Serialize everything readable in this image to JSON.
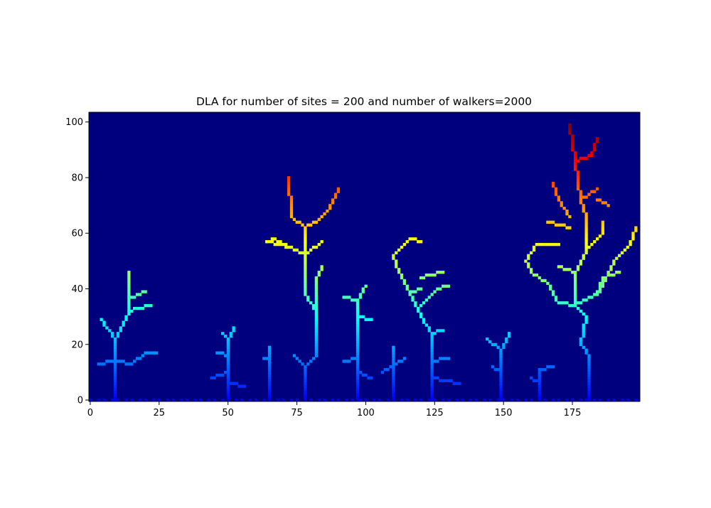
{
  "chart_data": {
    "type": "heatmap",
    "title": "DLA for number of sites = 200 and number of walkers=2000",
    "xlabel": "",
    "ylabel": "",
    "xlim": [
      0,
      200
    ],
    "ylim": [
      0,
      104
    ],
    "x_ticks": [
      0,
      25,
      50,
      75,
      100,
      125,
      150,
      175
    ],
    "y_ticks": [
      0,
      20,
      40,
      60,
      80,
      100
    ],
    "colormap": "jet",
    "background_color": "#00007f",
    "grid": false,
    "legend": "none",
    "clusters": [
      {
        "name": "left",
        "trunk_x": 9,
        "top": 46,
        "segments": [
          [
            9,
            0,
            9,
            22
          ],
          [
            9,
            22,
            4,
            29
          ],
          [
            9,
            22,
            14,
            32
          ],
          [
            14,
            32,
            14,
            46
          ],
          [
            14,
            36,
            20,
            39
          ],
          [
            14,
            32,
            22,
            34
          ],
          [
            9,
            14,
            3,
            13
          ],
          [
            9,
            14,
            15,
            13
          ],
          [
            15,
            13,
            20,
            17
          ],
          [
            20,
            17,
            24,
            17
          ]
        ]
      },
      {
        "name": "small-50",
        "trunk_x": 50,
        "top": 26,
        "segments": [
          [
            50,
            0,
            50,
            22
          ],
          [
            50,
            22,
            48,
            24
          ],
          [
            50,
            22,
            52,
            26
          ],
          [
            50,
            16,
            46,
            17
          ],
          [
            50,
            10,
            44,
            8
          ],
          [
            50,
            6,
            56,
            5
          ]
        ]
      },
      {
        "name": "small-65",
        "trunk_x": 65,
        "top": 19,
        "segments": [
          [
            65,
            0,
            65,
            19
          ],
          [
            65,
            14,
            63,
            15
          ]
        ]
      },
      {
        "name": "mid-left",
        "trunk_x": 78,
        "top": 80,
        "segments": [
          [
            78,
            0,
            78,
            12
          ],
          [
            78,
            12,
            74,
            16
          ],
          [
            78,
            12,
            82,
            16
          ],
          [
            82,
            16,
            82,
            32
          ],
          [
            82,
            32,
            78,
            38
          ],
          [
            78,
            38,
            78,
            52
          ],
          [
            78,
            52,
            73,
            55
          ],
          [
            73,
            55,
            66,
            58
          ],
          [
            78,
            52,
            84,
            57
          ],
          [
            78,
            52,
            78,
            62
          ],
          [
            78,
            62,
            73,
            66
          ],
          [
            73,
            66,
            72,
            80
          ],
          [
            78,
            62,
            82,
            64
          ],
          [
            82,
            64,
            86,
            68
          ],
          [
            86,
            68,
            90,
            76
          ],
          [
            73,
            55,
            64,
            57
          ],
          [
            82,
            32,
            82,
            44
          ],
          [
            82,
            44,
            84,
            48
          ]
        ]
      },
      {
        "name": "mid-small",
        "trunk_x": 97,
        "top": 42,
        "segments": [
          [
            97,
            0,
            97,
            36
          ],
          [
            97,
            36,
            92,
            37
          ],
          [
            97,
            30,
            102,
            29
          ],
          [
            97,
            36,
            100,
            41
          ],
          [
            97,
            15,
            92,
            14
          ],
          [
            97,
            10,
            102,
            8
          ]
        ]
      },
      {
        "name": "mid-small-2",
        "trunk_x": 110,
        "top": 19,
        "segments": [
          [
            110,
            0,
            110,
            19
          ],
          [
            110,
            12,
            106,
            10
          ],
          [
            110,
            12,
            114,
            15
          ]
        ]
      },
      {
        "name": "center-right",
        "trunk_x": 124,
        "top": 59,
        "segments": [
          [
            124,
            0,
            124,
            24
          ],
          [
            124,
            24,
            120,
            30
          ],
          [
            120,
            30,
            116,
            38
          ],
          [
            116,
            38,
            112,
            46
          ],
          [
            112,
            46,
            110,
            52
          ],
          [
            110,
            52,
            116,
            58
          ],
          [
            116,
            58,
            120,
            57
          ],
          [
            116,
            38,
            120,
            40
          ],
          [
            124,
            24,
            128,
            25
          ],
          [
            120,
            34,
            126,
            40
          ],
          [
            126,
            40,
            130,
            41
          ],
          [
            120,
            44,
            128,
            46
          ],
          [
            124,
            14,
            130,
            15
          ],
          [
            124,
            8,
            134,
            6
          ]
        ]
      },
      {
        "name": "right-small",
        "trunk_x": 149,
        "top": 26,
        "segments": [
          [
            149,
            0,
            149,
            18
          ],
          [
            149,
            18,
            144,
            22
          ],
          [
            149,
            18,
            152,
            24
          ],
          [
            149,
            10,
            146,
            12
          ]
        ]
      },
      {
        "name": "right-small-2",
        "trunk_x": 163,
        "top": 13,
        "segments": [
          [
            163,
            0,
            163,
            11
          ],
          [
            163,
            11,
            168,
            12
          ],
          [
            163,
            6,
            160,
            8
          ]
        ]
      },
      {
        "name": "right",
        "trunk_x": 181,
        "top": 99,
        "segments": [
          [
            181,
            0,
            181,
            16
          ],
          [
            181,
            16,
            178,
            20
          ],
          [
            178,
            20,
            180,
            30
          ],
          [
            180,
            30,
            176,
            34
          ],
          [
            176,
            34,
            170,
            35
          ],
          [
            170,
            35,
            166,
            42
          ],
          [
            166,
            42,
            160,
            46
          ],
          [
            160,
            46,
            158,
            50
          ],
          [
            158,
            50,
            162,
            56
          ],
          [
            162,
            56,
            170,
            56
          ],
          [
            176,
            34,
            184,
            38
          ],
          [
            184,
            38,
            186,
            44
          ],
          [
            186,
            44,
            192,
            46
          ],
          [
            184,
            38,
            190,
            50
          ],
          [
            190,
            50,
            196,
            56
          ],
          [
            196,
            56,
            198,
            62
          ],
          [
            176,
            34,
            176,
            46
          ],
          [
            176,
            46,
            180,
            54
          ],
          [
            180,
            54,
            180,
            66
          ],
          [
            180,
            66,
            178,
            72
          ],
          [
            178,
            72,
            176,
            86
          ],
          [
            176,
            86,
            174,
            99
          ],
          [
            178,
            72,
            184,
            76
          ],
          [
            184,
            72,
            188,
            70
          ],
          [
            176,
            86,
            182,
            88
          ],
          [
            182,
            88,
            184,
            94
          ],
          [
            174,
            66,
            170,
            72
          ],
          [
            170,
            72,
            168,
            78
          ],
          [
            180,
            54,
            186,
            60
          ],
          [
            186,
            60,
            186,
            64
          ],
          [
            174,
            62,
            166,
            64
          ],
          [
            176,
            46,
            170,
            48
          ]
        ]
      }
    ]
  }
}
